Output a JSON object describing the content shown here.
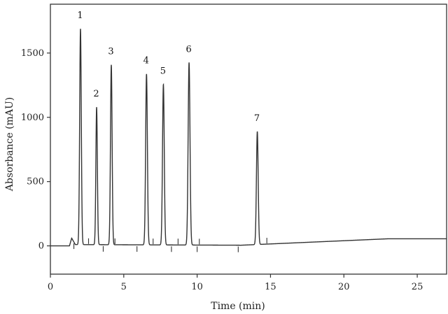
{
  "chart_data": {
    "type": "line",
    "title": "",
    "xlabel": "Time (min)",
    "ylabel": "Absorbance (mAU)",
    "xlim": [
      0,
      27
    ],
    "ylim": [
      -220,
      1880
    ],
    "x_ticks": [
      0,
      5,
      10,
      15,
      20,
      25
    ],
    "y_ticks": [
      0,
      500,
      1000,
      1500
    ],
    "grid": false,
    "legend": "none",
    "series": [
      {
        "peaks": [
          {
            "label": "1",
            "time": 2.05,
            "height": 1680,
            "width": 0.13
          },
          {
            "label": "2",
            "time": 3.15,
            "height": 1070,
            "width": 0.12
          },
          {
            "label": "3",
            "time": 4.15,
            "height": 1400,
            "width": 0.13
          },
          {
            "label": "4",
            "time": 6.55,
            "height": 1330,
            "width": 0.14
          },
          {
            "label": "5",
            "time": 7.7,
            "height": 1250,
            "width": 0.14
          },
          {
            "label": "6",
            "time": 9.45,
            "height": 1420,
            "width": 0.15
          },
          {
            "label": "7",
            "time": 14.1,
            "height": 880,
            "width": 0.14
          }
        ],
        "baseline": [
          [
            0,
            0
          ],
          [
            1.3,
            0
          ],
          [
            1.45,
            60
          ],
          [
            1.7,
            10
          ],
          [
            13,
            5
          ],
          [
            23,
            55
          ],
          [
            27,
            55
          ]
        ]
      }
    ],
    "integration_markers": [
      1.6,
      2.6,
      3.6,
      4.4,
      5.9,
      7.0,
      8.25,
      8.7,
      10.0,
      10.15,
      12.8,
      14.75
    ],
    "line_color": "#333333",
    "axis_color": "#333333"
  }
}
